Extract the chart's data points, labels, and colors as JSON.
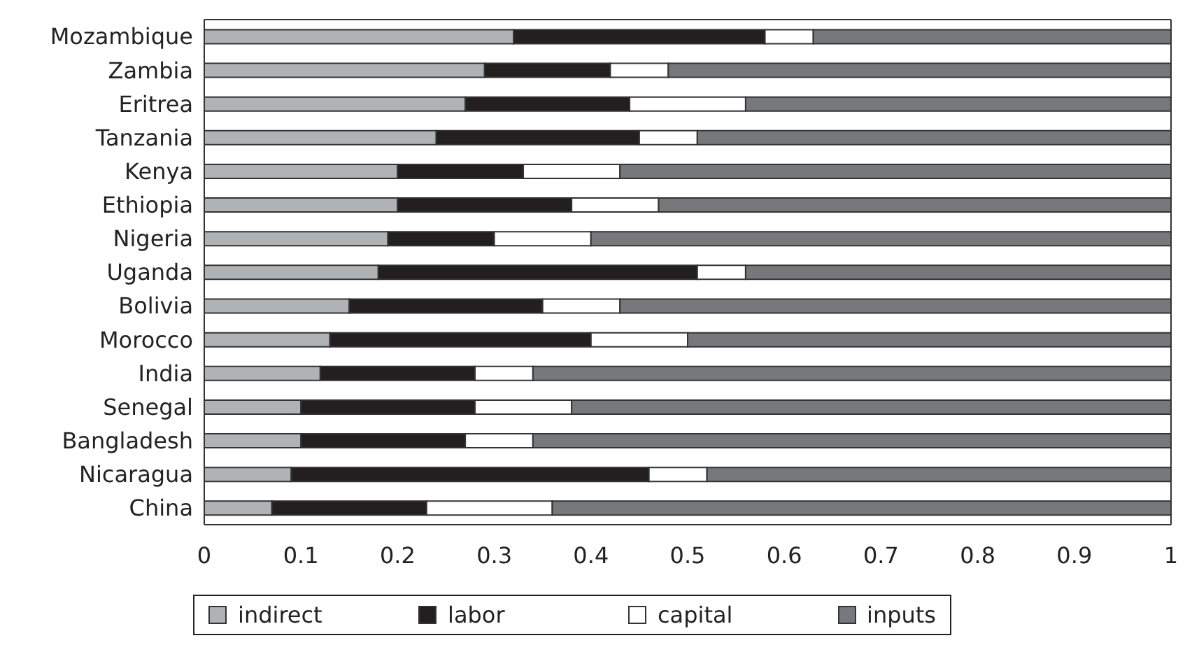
{
  "chart_data": {
    "type": "bar",
    "orientation": "horizontal",
    "stacked": true,
    "categories": [
      "Mozambique",
      "Zambia",
      "Eritrea",
      "Tanzania",
      "Kenya",
      "Ethiopia",
      "Nigeria",
      "Uganda",
      "Bolivia",
      "Morocco",
      "India",
      "Senegal",
      "Bangladesh",
      "Nicaragua",
      "China"
    ],
    "series": [
      {
        "name": "indirect",
        "color": "#b0b3b6",
        "values": [
          0.32,
          0.29,
          0.27,
          0.24,
          0.2,
          0.2,
          0.19,
          0.18,
          0.15,
          0.13,
          0.12,
          0.1,
          0.1,
          0.09,
          0.07
        ]
      },
      {
        "name": "labor",
        "color": "#231f20",
        "values": [
          0.26,
          0.13,
          0.17,
          0.21,
          0.13,
          0.18,
          0.11,
          0.33,
          0.2,
          0.27,
          0.16,
          0.18,
          0.17,
          0.37,
          0.16
        ]
      },
      {
        "name": "capital",
        "color": "#ffffff",
        "values": [
          0.05,
          0.06,
          0.12,
          0.06,
          0.1,
          0.09,
          0.1,
          0.05,
          0.08,
          0.1,
          0.06,
          0.1,
          0.07,
          0.06,
          0.13
        ]
      },
      {
        "name": "inputs",
        "color": "#77787b",
        "values": [
          0.37,
          0.52,
          0.44,
          0.49,
          0.57,
          0.53,
          0.6,
          0.44,
          0.57,
          0.5,
          0.66,
          0.62,
          0.66,
          0.48,
          0.64
        ]
      }
    ],
    "xlim": [
      0,
      1
    ],
    "xticks": [
      0,
      0.1,
      0.2,
      0.3,
      0.4,
      0.5,
      0.6,
      0.7,
      0.8,
      0.9,
      1
    ],
    "legend": "bottom"
  }
}
